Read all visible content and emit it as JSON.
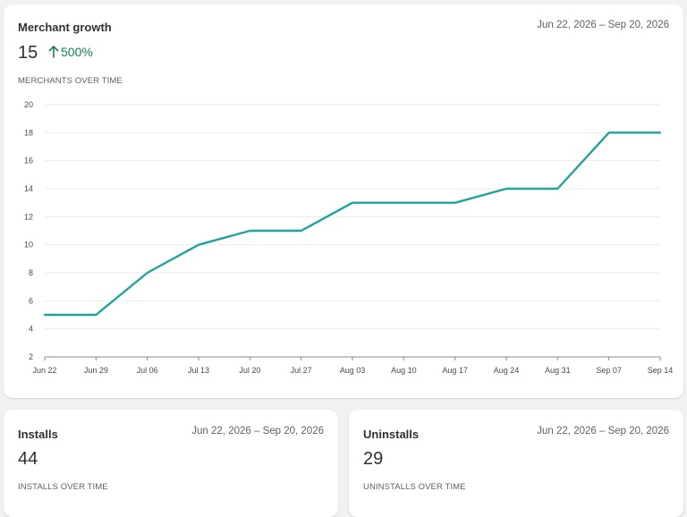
{
  "growth": {
    "title": "Merchant growth",
    "date_range": "Jun 22, 2026 – Sep 20, 2026",
    "value": "15",
    "change": "500%",
    "subtitle": "MERCHANTS OVER TIME",
    "icons": {
      "change": "arrow-up-icon"
    },
    "colors": {
      "line": "#1fa39a",
      "change": "#14805e"
    }
  },
  "installs": {
    "title": "Installs",
    "date_range": "Jun 22, 2026 – Sep 20, 2026",
    "value": "44",
    "subtitle": "INSTALLS OVER TIME"
  },
  "uninstalls": {
    "title": "Uninstalls",
    "date_range": "Jun 22, 2026 – Sep 20, 2026",
    "value": "29",
    "subtitle": "UNINSTALLS OVER TIME"
  },
  "chart_data": {
    "type": "line",
    "x": [
      "Jun 22",
      "Jun 29",
      "Jul 06",
      "Jul 13",
      "Jul 20",
      "Jul 27",
      "Aug 03",
      "Aug 10",
      "Aug 17",
      "Aug 24",
      "Aug 31",
      "Sep 07",
      "Sep 14"
    ],
    "series": [
      {
        "values": [
          5,
          5,
          8,
          10,
          11,
          11,
          13,
          13,
          13,
          14,
          14,
          18,
          18
        ]
      }
    ],
    "yticks": [
      2,
      4,
      6,
      8,
      10,
      12,
      14,
      16,
      18,
      20
    ],
    "ylim": [
      2,
      20
    ],
    "grid": true,
    "title": "",
    "xlabel": "",
    "ylabel": ""
  }
}
